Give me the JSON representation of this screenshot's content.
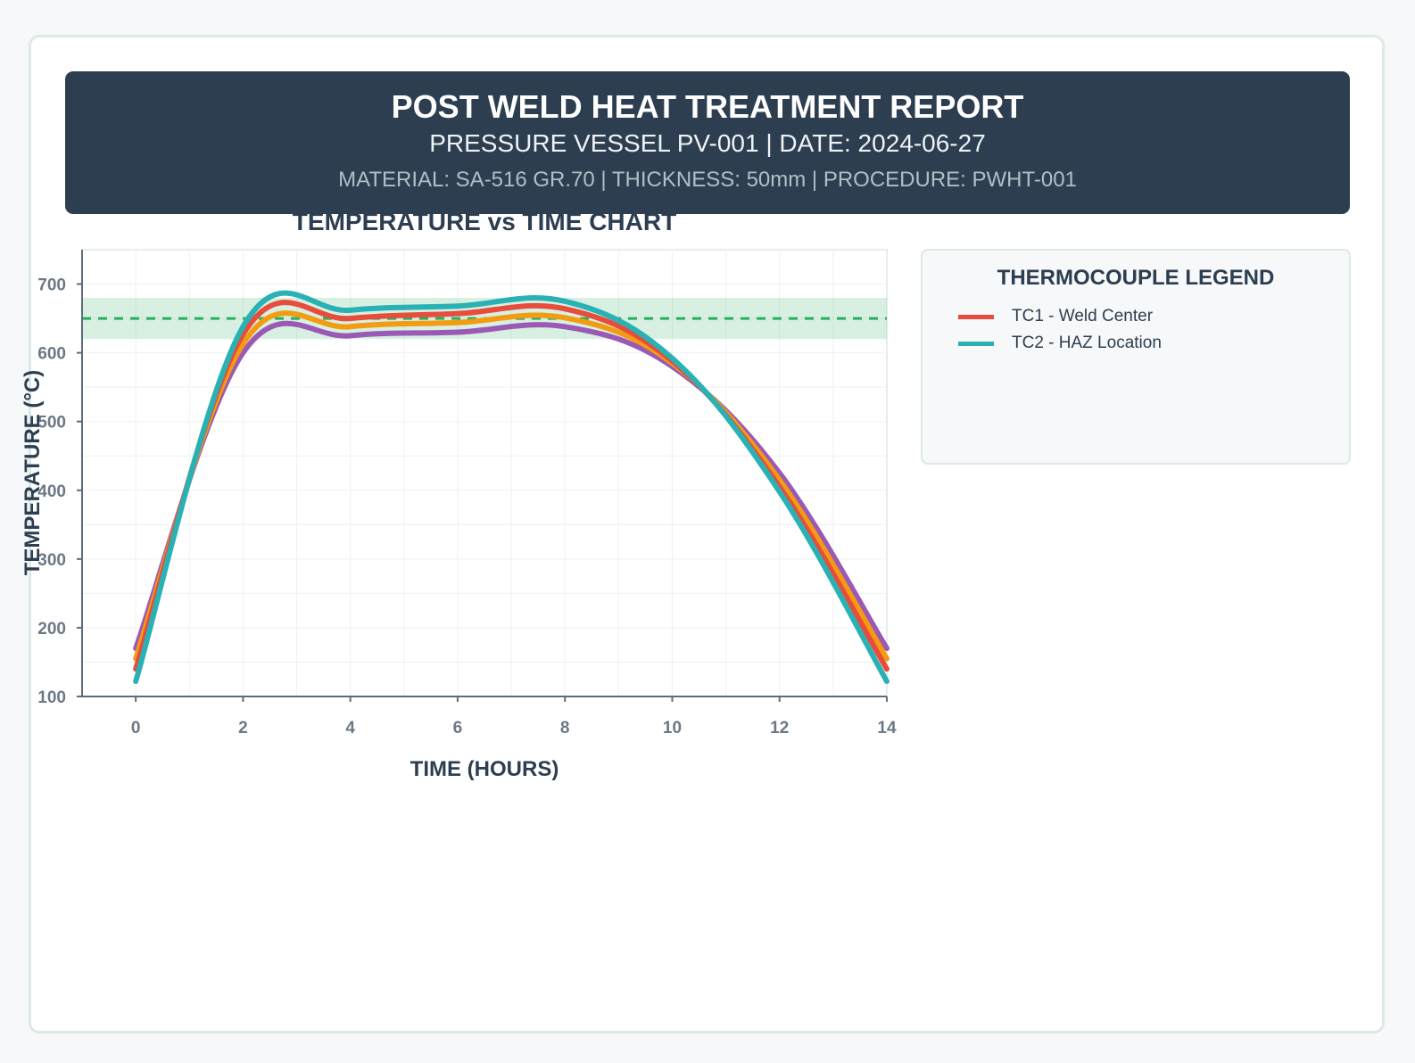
{
  "header": {
    "title": "POST WELD HEAT TREATMENT REPORT",
    "subtitle": "PRESSURE VESSEL PV-001 | DATE: 2024-06-27",
    "meta": "MATERIAL: SA-516 GR.70 | THICKNESS: 50mm | PROCEDURE: PWHT-001"
  },
  "legend": {
    "title": "THERMOCOUPLE LEGEND",
    "items": [
      {
        "label": "TC1 - Weld Center",
        "color": "#e74c3c"
      },
      {
        "label": "TC2 - HAZ Location",
        "color": "#2ab1b4"
      }
    ]
  },
  "chart_data": {
    "type": "line",
    "title": "TEMPERATURE vs TIME CHART",
    "xlabel": "TIME (HOURS)",
    "ylabel": "TEMPERATURE (°C)",
    "xlim": [
      -1,
      14
    ],
    "ylim": [
      100,
      750
    ],
    "xticks": [
      0,
      2,
      4,
      6,
      8,
      10,
      12,
      14
    ],
    "yticks": [
      100,
      200,
      300,
      400,
      500,
      600,
      700
    ],
    "grid": true,
    "target": {
      "value": 650,
      "band": [
        620,
        680
      ],
      "color": "#27ae60"
    },
    "series": [
      {
        "color": "#9b59b6",
        "x": [
          0,
          2,
          4,
          6,
          8,
          10,
          12,
          14
        ],
        "y": [
          170,
          600,
          625,
          630,
          638,
          580,
          425,
          170
        ]
      },
      {
        "color": "#f39c12",
        "x": [
          0,
          2,
          4,
          6,
          8,
          10,
          12,
          14
        ],
        "y": [
          155,
          613,
          638,
          644,
          651,
          585,
          415,
          155
        ]
      },
      {
        "name": "TC1 - Weld Center",
        "color": "#e74c3c",
        "x": [
          0,
          2,
          4,
          6,
          8,
          10,
          12,
          14
        ],
        "y": [
          140,
          627,
          650,
          657,
          664,
          588,
          405,
          140
        ]
      },
      {
        "name": "TC2 - HAZ Location",
        "color": "#2ab1b4",
        "x": [
          0,
          2,
          4,
          6,
          8,
          10,
          12,
          14
        ],
        "y": [
          122,
          638,
          662,
          668,
          675,
          592,
          398,
          122
        ]
      }
    ]
  }
}
